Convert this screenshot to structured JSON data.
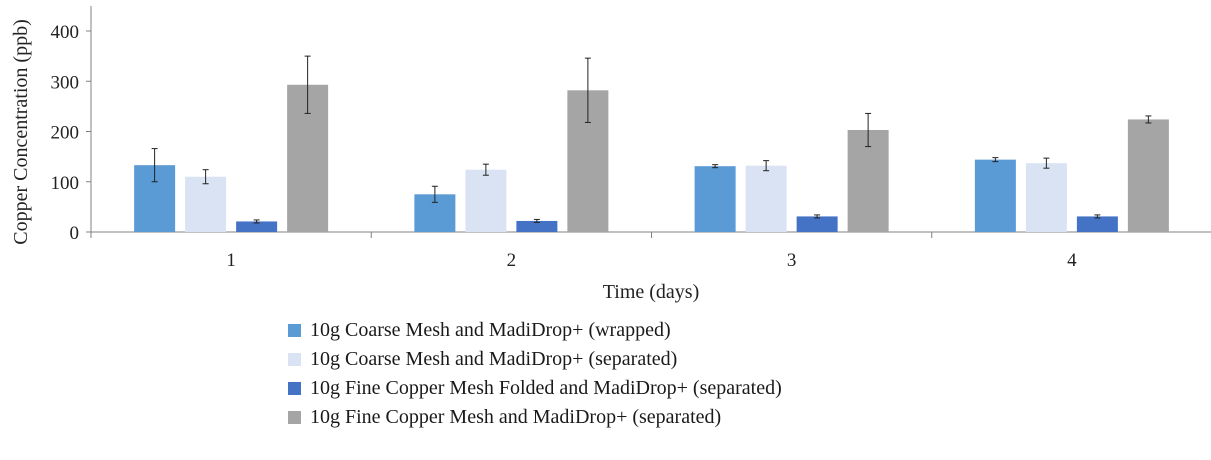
{
  "chart_data": {
    "type": "bar",
    "xlabel": "Time (days)",
    "ylabel": "Copper Concentration  (ppb)",
    "categories": [
      "1",
      "2",
      "3",
      "4"
    ],
    "ylim": [
      0,
      400
    ],
    "yticks": [
      "0",
      "100",
      "200",
      "300",
      "400"
    ],
    "grid": false,
    "legend_position": "bottom",
    "series": [
      {
        "name": "10g Coarse Mesh and MadiDrop+ (wrapped)",
        "color": "#5b9bd5",
        "values": [
          133,
          75,
          131,
          144
        ],
        "errors": [
          33,
          16,
          3,
          4
        ]
      },
      {
        "name": "10g Coarse Mesh and MadiDrop+ (separated)",
        "color": "#dae3f3",
        "values": [
          110,
          124,
          132,
          137
        ],
        "errors": [
          14,
          11,
          10,
          10
        ]
      },
      {
        "name": "10g Fine Copper Mesh Folded and MadiDrop+ (separated)",
        "color": "#4472c4",
        "values": [
          21,
          22,
          31,
          31
        ],
        "errors": [
          3,
          3,
          3,
          3
        ]
      },
      {
        "name": "10g Fine Copper Mesh and MadiDrop+ (separated)",
        "color": "#a5a5a5",
        "values": [
          293,
          282,
          203,
          224
        ],
        "errors": [
          57,
          64,
          33,
          7
        ]
      }
    ]
  }
}
